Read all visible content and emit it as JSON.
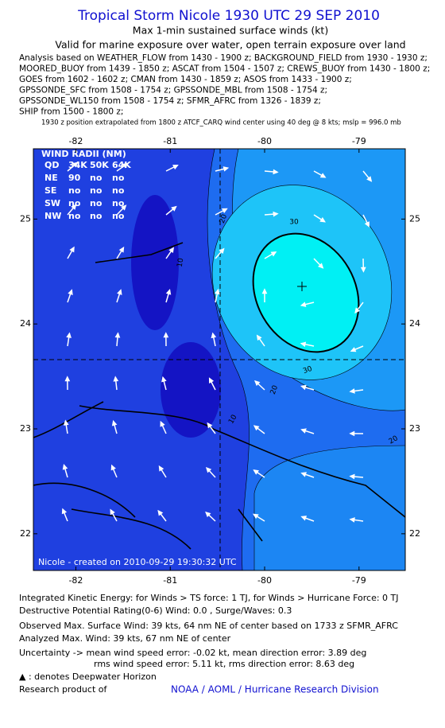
{
  "header": {
    "title": "Tropical Storm Nicole 1930 UTC 29 SEP 2010",
    "subtitle": "Max 1-min sustained surface winds (kt)",
    "validity": "Valid for marine exposure over water, open terrain exposure over land",
    "analysis_lines": [
      "Analysis based on WEATHER_FLOW from 1430 - 1900 z; BACKGROUND_FIELD from 1930 - 1930 z;",
      "MOORED_BUOY from 1439 - 1850 z; ASCAT from 1504 - 1507 z; CREWS_BUOY from 1430 - 1800 z;",
      "GOES from 1602 - 1602 z; CMAN from 1430 - 1859 z; ASOS from 1433 - 1900 z;",
      "GPSSONDE_SFC from 1508 - 1754 z; GPSSONDE_MBL from 1508 - 1754 z;",
      "GPSSONDE_WL150 from 1508 - 1754 z; SFMR_AFRC from 1326 - 1839 z;",
      "SHIP from 1500 - 1800 z;"
    ],
    "position_note": "1930 z position extrapolated from 1800 z ATCF_CARQ wind center using 40 deg @ 8 kts; mslp = 996.0 mb"
  },
  "map": {
    "xlim": [
      -82.45,
      -78.51
    ],
    "ylim": [
      21.65,
      25.67
    ],
    "xticks": [
      -82,
      -81,
      -80,
      -79
    ],
    "yticks": [
      22,
      23,
      24,
      25
    ],
    "wind_radii": {
      "title": "WIND RADII (NM)",
      "header": [
        "QD",
        "34K",
        "50K",
        "64K"
      ],
      "rows": [
        [
          "NE",
          "90",
          "no",
          "no"
        ],
        [
          "SE",
          "no",
          "no",
          "no"
        ],
        [
          "SW",
          "no",
          "no",
          "no"
        ],
        [
          "NW",
          "no",
          "no",
          "no"
        ]
      ]
    },
    "contour_labels": [
      "30",
      "30",
      "20",
      "10",
      "20",
      "10",
      "20"
    ],
    "credit": "Nicole - created on 2010-09-29 19:30:32 UTC"
  },
  "footer": {
    "lines": [
      "Integrated Kinetic Energy:  for Winds > TS force: 1 TJ,  for Winds > Hurricane Force: 0 TJ",
      "Destructive Potential Rating(0-6)   Wind: 0.0 , Surge/Waves: 0.3",
      "Observed Max. Surface Wind: 39 kts, 64 nm NE of center based on 1733 z SFMR_AFRC",
      "Analyzed Max. Wind: 39 kts, 67 nm NE of center",
      "Uncertainty -> mean wind speed error:  -0.02 kt,   mean direction error: 3.89 deg",
      "rms wind speed error:  5.11 kt,   rms direction error: 8.63 deg",
      "▲ : denotes Deepwater Horizon",
      "Research product of"
    ],
    "organization": "NOAA / AOML / Hurricane Research Division"
  }
}
